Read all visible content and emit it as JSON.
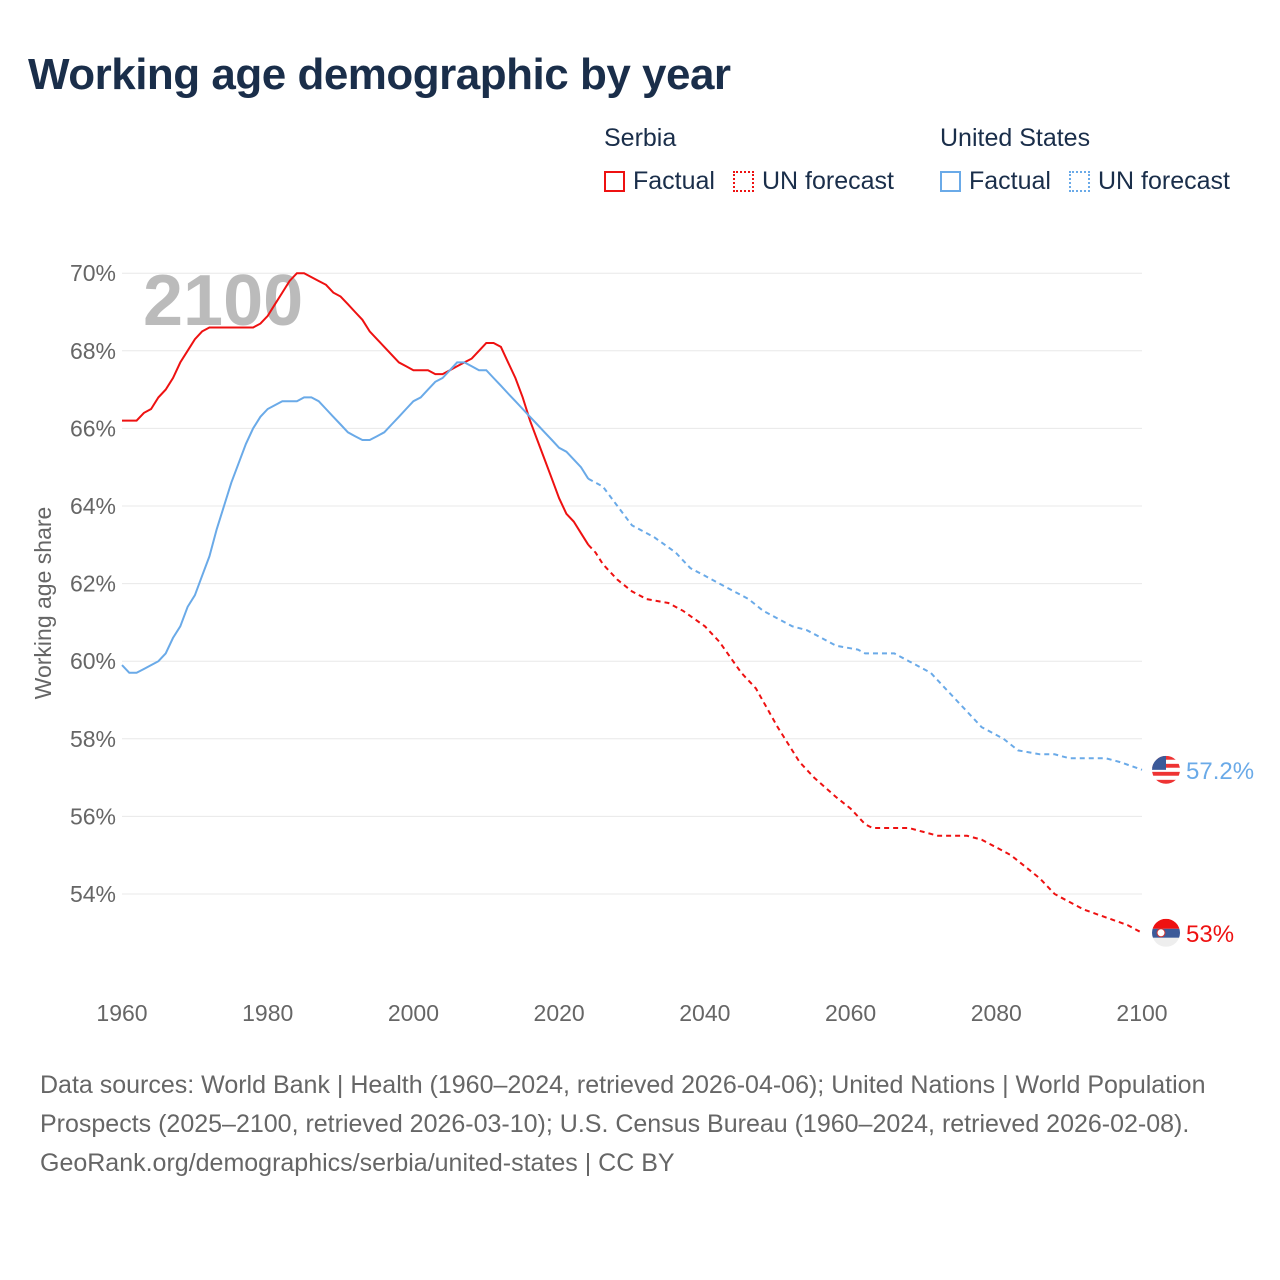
{
  "title": "Working age demographic by year",
  "legend": {
    "groups": [
      {
        "name": "Serbia",
        "color": "#ee1111",
        "items": [
          "Factual",
          "UN forecast"
        ]
      },
      {
        "name": "United States",
        "color": "#6aaae8",
        "items": [
          "Factual",
          "UN forecast"
        ]
      }
    ]
  },
  "chart_data": {
    "type": "line",
    "title": "Working age demographic by year",
    "xlabel": "",
    "ylabel": "Working age share",
    "xlim": [
      1960,
      2100
    ],
    "ylim": [
      52.5,
      70.5
    ],
    "x_ticks": [
      "1960",
      "1980",
      "2000",
      "2020",
      "2040",
      "2060",
      "2080",
      "2100"
    ],
    "y_ticks": [
      "54%",
      "56%",
      "58%",
      "60%",
      "62%",
      "64%",
      "66%",
      "68%",
      "70%"
    ],
    "grid": true,
    "year_watermark": "2100",
    "series": [
      {
        "name": "Serbia",
        "color": "#ee1111",
        "end_label": "53%",
        "factual": [
          [
            1960,
            66.2
          ],
          [
            1962,
            66.2
          ],
          [
            1963,
            66.4
          ],
          [
            1964,
            66.5
          ],
          [
            1965,
            66.8
          ],
          [
            1966,
            67.0
          ],
          [
            1967,
            67.3
          ],
          [
            1968,
            67.7
          ],
          [
            1969,
            68.0
          ],
          [
            1970,
            68.3
          ],
          [
            1971,
            68.5
          ],
          [
            1972,
            68.6
          ],
          [
            1978,
            68.6
          ],
          [
            1979,
            68.7
          ],
          [
            1980,
            68.9
          ],
          [
            1981,
            69.2
          ],
          [
            1982,
            69.5
          ],
          [
            1983,
            69.8
          ],
          [
            1984,
            70.0
          ],
          [
            1985,
            70.0
          ],
          [
            1986,
            69.9
          ],
          [
            1987,
            69.8
          ],
          [
            1988,
            69.7
          ],
          [
            1989,
            69.5
          ],
          [
            1990,
            69.4
          ],
          [
            1991,
            69.2
          ],
          [
            1992,
            69.0
          ],
          [
            1993,
            68.8
          ],
          [
            1994,
            68.5
          ],
          [
            1995,
            68.3
          ],
          [
            1996,
            68.1
          ],
          [
            1997,
            67.9
          ],
          [
            1998,
            67.7
          ],
          [
            1999,
            67.6
          ],
          [
            2000,
            67.5
          ],
          [
            2002,
            67.5
          ],
          [
            2003,
            67.4
          ],
          [
            2004,
            67.4
          ],
          [
            2005,
            67.5
          ],
          [
            2006,
            67.6
          ],
          [
            2007,
            67.7
          ],
          [
            2008,
            67.8
          ],
          [
            2009,
            68.0
          ],
          [
            2010,
            68.2
          ],
          [
            2011,
            68.2
          ],
          [
            2012,
            68.1
          ],
          [
            2013,
            67.7
          ],
          [
            2014,
            67.3
          ],
          [
            2015,
            66.8
          ],
          [
            2016,
            66.2
          ],
          [
            2017,
            65.7
          ],
          [
            2018,
            65.2
          ],
          [
            2019,
            64.7
          ],
          [
            2020,
            64.2
          ],
          [
            2021,
            63.8
          ],
          [
            2022,
            63.6
          ],
          [
            2023,
            63.3
          ],
          [
            2024,
            63.0
          ]
        ],
        "forecast": [
          [
            2024,
            63.0
          ],
          [
            2025,
            62.8
          ],
          [
            2026,
            62.5
          ],
          [
            2028,
            62.1
          ],
          [
            2030,
            61.8
          ],
          [
            2032,
            61.6
          ],
          [
            2035,
            61.5
          ],
          [
            2037,
            61.3
          ],
          [
            2040,
            60.9
          ],
          [
            2042,
            60.5
          ],
          [
            2045,
            59.7
          ],
          [
            2047,
            59.3
          ],
          [
            2050,
            58.3
          ],
          [
            2053,
            57.4
          ],
          [
            2055,
            57.0
          ],
          [
            2058,
            56.5
          ],
          [
            2060,
            56.2
          ],
          [
            2062,
            55.8
          ],
          [
            2063,
            55.7
          ],
          [
            2068,
            55.7
          ],
          [
            2070,
            55.6
          ],
          [
            2072,
            55.5
          ],
          [
            2076,
            55.5
          ],
          [
            2078,
            55.4
          ],
          [
            2080,
            55.2
          ],
          [
            2082,
            55.0
          ],
          [
            2084,
            54.7
          ],
          [
            2086,
            54.4
          ],
          [
            2088,
            54.0
          ],
          [
            2090,
            53.8
          ],
          [
            2092,
            53.6
          ],
          [
            2095,
            53.4
          ],
          [
            2098,
            53.2
          ],
          [
            2100,
            53.0
          ]
        ]
      },
      {
        "name": "United States",
        "color": "#6aaae8",
        "end_label": "57.2%",
        "factual": [
          [
            1960,
            59.9
          ],
          [
            1961,
            59.7
          ],
          [
            1962,
            59.7
          ],
          [
            1963,
            59.8
          ],
          [
            1964,
            59.9
          ],
          [
            1965,
            60.0
          ],
          [
            1966,
            60.2
          ],
          [
            1967,
            60.6
          ],
          [
            1968,
            60.9
          ],
          [
            1969,
            61.4
          ],
          [
            1970,
            61.7
          ],
          [
            1971,
            62.2
          ],
          [
            1972,
            62.7
          ],
          [
            1973,
            63.4
          ],
          [
            1974,
            64.0
          ],
          [
            1975,
            64.6
          ],
          [
            1976,
            65.1
          ],
          [
            1977,
            65.6
          ],
          [
            1978,
            66.0
          ],
          [
            1979,
            66.3
          ],
          [
            1980,
            66.5
          ],
          [
            1981,
            66.6
          ],
          [
            1982,
            66.7
          ],
          [
            1984,
            66.7
          ],
          [
            1985,
            66.8
          ],
          [
            1986,
            66.8
          ],
          [
            1987,
            66.7
          ],
          [
            1988,
            66.5
          ],
          [
            1989,
            66.3
          ],
          [
            1990,
            66.1
          ],
          [
            1991,
            65.9
          ],
          [
            1992,
            65.8
          ],
          [
            1993,
            65.7
          ],
          [
            1994,
            65.7
          ],
          [
            1995,
            65.8
          ],
          [
            1996,
            65.9
          ],
          [
            1997,
            66.1
          ],
          [
            1998,
            66.3
          ],
          [
            1999,
            66.5
          ],
          [
            2000,
            66.7
          ],
          [
            2001,
            66.8
          ],
          [
            2002,
            67.0
          ],
          [
            2003,
            67.2
          ],
          [
            2004,
            67.3
          ],
          [
            2005,
            67.5
          ],
          [
            2006,
            67.7
          ],
          [
            2007,
            67.7
          ],
          [
            2008,
            67.6
          ],
          [
            2009,
            67.5
          ],
          [
            2010,
            67.5
          ],
          [
            2011,
            67.3
          ],
          [
            2012,
            67.1
          ],
          [
            2013,
            66.9
          ],
          [
            2014,
            66.7
          ],
          [
            2015,
            66.5
          ],
          [
            2016,
            66.3
          ],
          [
            2017,
            66.1
          ],
          [
            2018,
            65.9
          ],
          [
            2019,
            65.7
          ],
          [
            2020,
            65.5
          ],
          [
            2021,
            65.4
          ],
          [
            2022,
            65.2
          ],
          [
            2023,
            65.0
          ],
          [
            2024,
            64.7
          ]
        ],
        "forecast": [
          [
            2024,
            64.7
          ],
          [
            2026,
            64.5
          ],
          [
            2028,
            64.0
          ],
          [
            2030,
            63.5
          ],
          [
            2033,
            63.2
          ],
          [
            2036,
            62.8
          ],
          [
            2038,
            62.4
          ],
          [
            2040,
            62.2
          ],
          [
            2042,
            62.0
          ],
          [
            2046,
            61.6
          ],
          [
            2048,
            61.3
          ],
          [
            2052,
            60.9
          ],
          [
            2054,
            60.8
          ],
          [
            2058,
            60.4
          ],
          [
            2061,
            60.3
          ],
          [
            2062,
            60.2
          ],
          [
            2066,
            60.2
          ],
          [
            2068,
            60.0
          ],
          [
            2071,
            59.7
          ],
          [
            2073,
            59.3
          ],
          [
            2076,
            58.7
          ],
          [
            2078,
            58.3
          ],
          [
            2081,
            58.0
          ],
          [
            2083,
            57.7
          ],
          [
            2086,
            57.6
          ],
          [
            2088,
            57.6
          ],
          [
            2090,
            57.5
          ],
          [
            2095,
            57.5
          ],
          [
            2097,
            57.4
          ],
          [
            2100,
            57.2
          ]
        ]
      }
    ]
  },
  "footer": {
    "sources": "Data sources: World Bank | Health (1960–2024, retrieved 2026-04-06); United Nations | World Population Prospects (2025–2100, retrieved 2026-03-10); U.S. Census Bureau (1960–2024, retrieved 2026-02-08).",
    "link": "GeoRank.org/demographics/serbia/united-states | CC BY"
  }
}
